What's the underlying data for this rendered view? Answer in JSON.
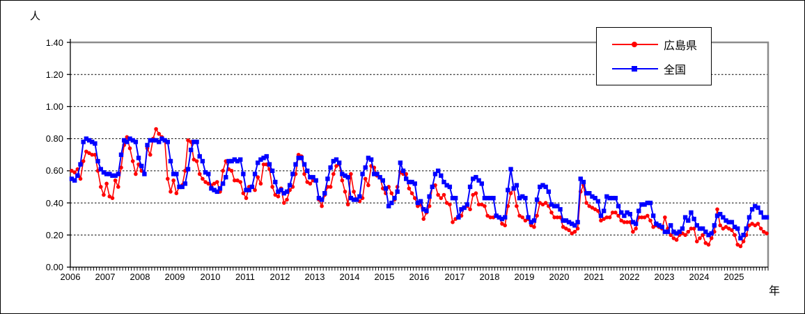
{
  "chart": {
    "y_unit_label": "人",
    "x_unit_label": "年",
    "y_ticks": [
      "0.00",
      "0.20",
      "0.40",
      "0.60",
      "0.80",
      "1.00",
      "1.20",
      "1.40"
    ],
    "x_ticks": [
      "2006",
      "2007",
      "2008",
      "2009",
      "2010",
      "2011",
      "2012",
      "2013",
      "2014",
      "2015",
      "2016",
      "2017",
      "2018",
      "2019",
      "2020",
      "2021",
      "2022",
      "2023",
      "2024",
      "2025"
    ],
    "legend": [
      {
        "label": "広島県",
        "color": "#ff0000",
        "marker": "circle"
      },
      {
        "label": "全国",
        "color": "#0000ff",
        "marker": "square"
      }
    ],
    "colors": {
      "grid": "#000000",
      "axis": "#000000",
      "frame": "#8c8c8c",
      "background": "#ffffff"
    }
  },
  "chart_data": {
    "type": "line",
    "title": "",
    "xlabel": "年",
    "ylabel": "人",
    "x_start": "2006-01",
    "x_end": "2025-12",
    "x_frequency": "monthly",
    "x_year_ticks": [
      2006,
      2007,
      2008,
      2009,
      2010,
      2011,
      2012,
      2013,
      2014,
      2015,
      2016,
      2017,
      2018,
      2019,
      2020,
      2021,
      2022,
      2023,
      2024,
      2025
    ],
    "ylim": [
      0.0,
      1.4
    ],
    "y_tick_step": 0.2,
    "grid": true,
    "legend_position": "top-right",
    "series": [
      {
        "name": "広島県",
        "color": "#ff0000",
        "marker": "circle",
        "values": [
          0.6,
          0.59,
          0.61,
          0.55,
          0.66,
          0.72,
          0.71,
          0.7,
          0.7,
          0.6,
          0.5,
          0.45,
          0.52,
          0.44,
          0.43,
          0.54,
          0.5,
          0.62,
          0.76,
          0.81,
          0.74,
          0.66,
          0.58,
          0.64,
          0.6,
          0.58,
          0.74,
          0.7,
          0.8,
          0.86,
          0.83,
          0.81,
          0.79,
          0.55,
          0.47,
          0.54,
          0.46,
          0.5,
          0.51,
          0.6,
          0.79,
          0.78,
          0.67,
          0.66,
          0.58,
          0.55,
          0.53,
          0.52,
          0.51,
          0.52,
          0.53,
          0.47,
          0.6,
          0.66,
          0.61,
          0.6,
          0.54,
          0.54,
          0.53,
          0.46,
          0.43,
          0.5,
          0.5,
          0.48,
          0.56,
          0.52,
          0.64,
          0.64,
          0.61,
          0.5,
          0.45,
          0.44,
          0.49,
          0.4,
          0.42,
          0.48,
          0.5,
          0.58,
          0.7,
          0.69,
          0.58,
          0.53,
          0.52,
          0.54,
          0.54,
          0.42,
          0.38,
          0.45,
          0.5,
          0.5,
          0.58,
          0.63,
          0.64,
          0.54,
          0.47,
          0.39,
          0.58,
          0.47,
          0.42,
          0.41,
          0.43,
          0.55,
          0.51,
          0.63,
          0.62,
          0.57,
          0.56,
          0.49,
          0.46,
          0.5,
          0.46,
          0.42,
          0.5,
          0.59,
          0.58,
          0.58,
          0.49,
          0.46,
          0.43,
          0.38,
          0.39,
          0.3,
          0.34,
          0.38,
          0.5,
          0.51,
          0.45,
          0.43,
          0.45,
          0.4,
          0.39,
          0.28,
          0.3,
          0.31,
          0.32,
          0.37,
          0.38,
          0.36,
          0.45,
          0.46,
          0.39,
          0.39,
          0.38,
          0.32,
          0.31,
          0.31,
          0.32,
          0.31,
          0.27,
          0.26,
          0.38,
          0.46,
          0.49,
          0.38,
          0.32,
          0.31,
          0.29,
          0.3,
          0.26,
          0.25,
          0.32,
          0.4,
          0.39,
          0.4,
          0.38,
          0.34,
          0.31,
          0.31,
          0.31,
          0.25,
          0.24,
          0.23,
          0.21,
          0.22,
          0.24,
          0.47,
          0.51,
          0.4,
          0.38,
          0.37,
          0.36,
          0.35,
          0.29,
          0.3,
          0.31,
          0.31,
          0.34,
          0.34,
          0.32,
          0.29,
          0.28,
          0.28,
          0.28,
          0.22,
          0.24,
          0.31,
          0.31,
          0.31,
          0.32,
          0.29,
          0.25,
          0.26,
          0.25,
          0.24,
          0.31,
          0.24,
          0.2,
          0.18,
          0.17,
          0.2,
          0.21,
          0.2,
          0.22,
          0.24,
          0.24,
          0.16,
          0.18,
          0.2,
          0.15,
          0.14,
          0.18,
          0.22,
          0.36,
          0.26,
          0.24,
          0.25,
          0.24,
          0.23,
          0.2,
          0.14,
          0.13,
          0.16,
          0.2,
          0.26,
          0.27,
          0.26,
          0.27,
          0.24,
          0.22,
          0.21
        ]
      },
      {
        "name": "全国",
        "color": "#0000ff",
        "marker": "square",
        "values": [
          0.55,
          0.54,
          0.57,
          0.64,
          0.78,
          0.8,
          0.79,
          0.78,
          0.77,
          0.66,
          0.61,
          0.59,
          0.58,
          0.58,
          0.57,
          0.57,
          0.58,
          0.7,
          0.79,
          0.78,
          0.8,
          0.79,
          0.78,
          0.68,
          0.63,
          0.58,
          0.76,
          0.79,
          0.79,
          0.79,
          0.78,
          0.8,
          0.79,
          0.78,
          0.66,
          0.58,
          0.58,
          0.5,
          0.5,
          0.52,
          0.61,
          0.73,
          0.78,
          0.78,
          0.69,
          0.66,
          0.59,
          0.58,
          0.49,
          0.48,
          0.47,
          0.49,
          0.52,
          0.56,
          0.66,
          0.66,
          0.67,
          0.66,
          0.67,
          0.58,
          0.48,
          0.48,
          0.5,
          0.58,
          0.65,
          0.67,
          0.68,
          0.69,
          0.64,
          0.6,
          0.53,
          0.47,
          0.48,
          0.46,
          0.47,
          0.51,
          0.58,
          0.64,
          0.68,
          0.68,
          0.64,
          0.6,
          0.56,
          0.56,
          0.54,
          0.43,
          0.42,
          0.46,
          0.55,
          0.62,
          0.66,
          0.67,
          0.65,
          0.58,
          0.57,
          0.56,
          0.43,
          0.42,
          0.42,
          0.44,
          0.58,
          0.62,
          0.68,
          0.67,
          0.58,
          0.58,
          0.56,
          0.54,
          0.49,
          0.38,
          0.4,
          0.43,
          0.47,
          0.65,
          0.6,
          0.55,
          0.53,
          0.53,
          0.52,
          0.4,
          0.41,
          0.36,
          0.35,
          0.44,
          0.5,
          0.58,
          0.6,
          0.57,
          0.53,
          0.51,
          0.5,
          0.43,
          0.43,
          0.31,
          0.36,
          0.37,
          0.39,
          0.5,
          0.55,
          0.56,
          0.54,
          0.52,
          0.43,
          0.43,
          0.43,
          0.43,
          0.32,
          0.31,
          0.3,
          0.31,
          0.48,
          0.61,
          0.49,
          0.51,
          0.43,
          0.44,
          0.43,
          0.31,
          0.28,
          0.29,
          0.42,
          0.5,
          0.51,
          0.5,
          0.47,
          0.39,
          0.38,
          0.38,
          0.36,
          0.29,
          0.29,
          0.28,
          0.27,
          0.26,
          0.28,
          0.55,
          0.53,
          0.46,
          0.46,
          0.44,
          0.43,
          0.41,
          0.32,
          0.35,
          0.44,
          0.43,
          0.43,
          0.43,
          0.38,
          0.34,
          0.32,
          0.34,
          0.33,
          0.28,
          0.27,
          0.35,
          0.39,
          0.39,
          0.4,
          0.4,
          0.32,
          0.27,
          0.26,
          0.25,
          0.22,
          0.22,
          0.26,
          0.22,
          0.21,
          0.22,
          0.24,
          0.31,
          0.29,
          0.34,
          0.3,
          0.26,
          0.24,
          0.24,
          0.22,
          0.2,
          0.21,
          0.26,
          0.32,
          0.33,
          0.31,
          0.29,
          0.28,
          0.28,
          0.25,
          0.24,
          0.18,
          0.2,
          0.24,
          0.31,
          0.36,
          0.38,
          0.37,
          0.34,
          0.31,
          0.31
        ]
      }
    ]
  }
}
